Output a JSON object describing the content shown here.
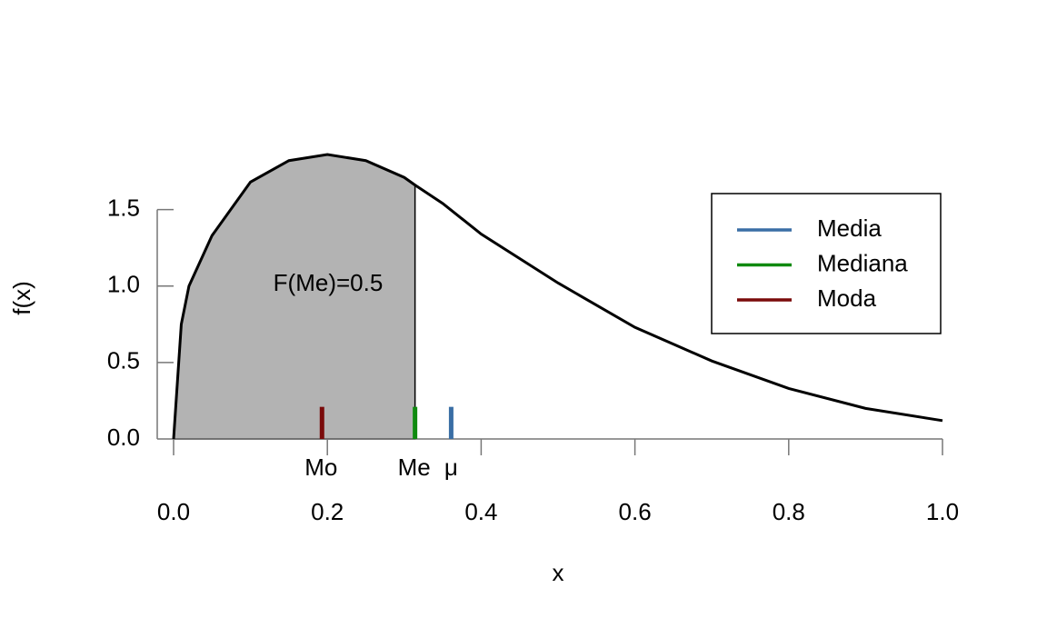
{
  "chart_data": {
    "type": "line",
    "xlabel": "x",
    "ylabel": "f(x)",
    "annotation": "F(Me)=0.5",
    "x": [
      0,
      0.01,
      0.02,
      0.05,
      0.1,
      0.15,
      0.2,
      0.25,
      0.3,
      0.314,
      0.35,
      0.4,
      0.5,
      0.6,
      0.7,
      0.8,
      0.9,
      1.0
    ],
    "series": [
      {
        "color": "#000000",
        "values": [
          0,
          0.75,
          1.0,
          1.33,
          1.68,
          1.82,
          1.86,
          1.82,
          1.71,
          1.66,
          1.54,
          1.34,
          1.02,
          0.73,
          0.51,
          0.33,
          0.2,
          0.12
        ]
      }
    ],
    "shade_color": "#b3b3b3",
    "markers": [
      {
        "name": "Media",
        "label": "μ",
        "color": "#3a6ea5",
        "x": 0.361
      },
      {
        "name": "Mediana",
        "label": "Me",
        "color": "#0f8a0f",
        "x": 0.314
      },
      {
        "name": "Moda",
        "label": "Mo",
        "color": "#7a0a0a",
        "x": 0.193
      }
    ],
    "xlim": [
      0,
      1
    ],
    "xticks": [
      {
        "value": 0,
        "label": "0.0"
      },
      {
        "value": 0.2,
        "label": "0.2"
      },
      {
        "value": 0.4,
        "label": "0.4"
      },
      {
        "value": 0.6,
        "label": "0.6"
      },
      {
        "value": 0.8,
        "label": "0.8"
      },
      {
        "value": 1,
        "label": "1.0"
      }
    ],
    "ylim": [
      0,
      1.86
    ],
    "yticks": [
      {
        "value": 0,
        "label": "0.0"
      },
      {
        "value": 0.5,
        "label": "0.5"
      },
      {
        "value": 1,
        "label": "1.0"
      },
      {
        "value": 1.5,
        "label": "1.5"
      }
    ],
    "legend": "top-right"
  }
}
